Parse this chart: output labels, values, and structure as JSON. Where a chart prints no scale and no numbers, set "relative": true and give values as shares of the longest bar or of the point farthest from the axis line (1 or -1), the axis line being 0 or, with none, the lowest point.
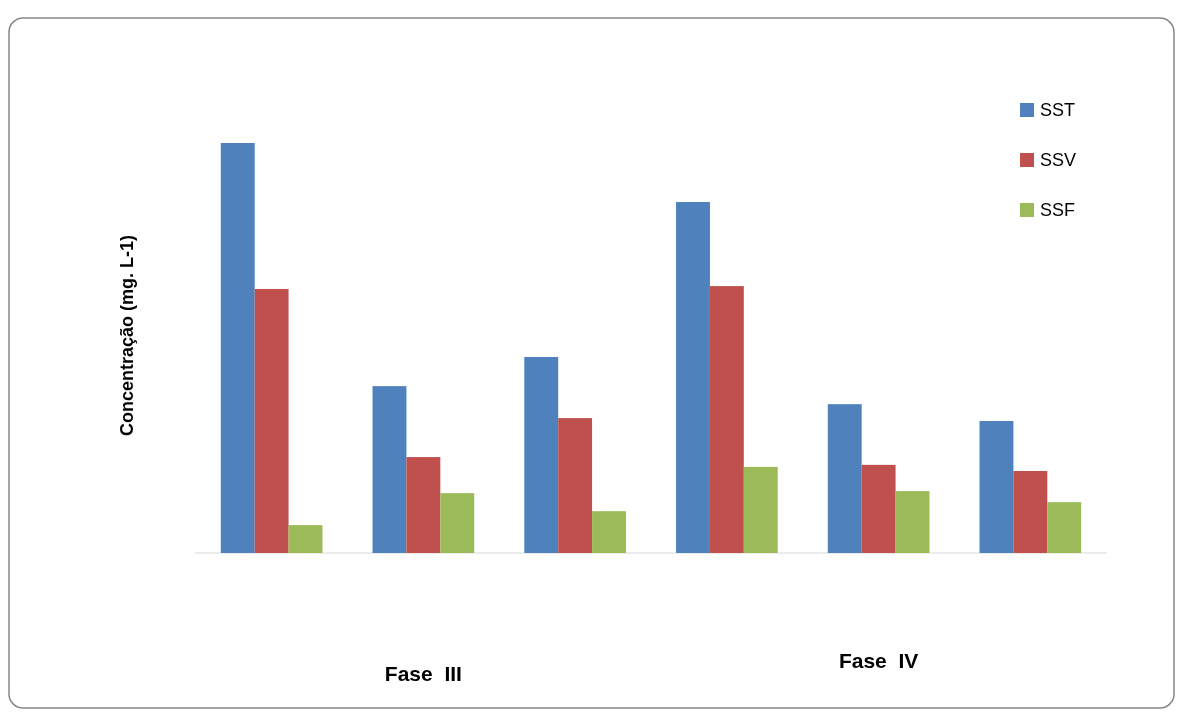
{
  "chart_data": {
    "type": "bar",
    "relative": true,
    "ylabel": "Concentração (mg. L-1)",
    "categories": [
      null,
      null,
      null,
      null,
      null,
      null
    ],
    "series": [
      {
        "name": "SST",
        "color": "#4f81bd",
        "values": [
          1,
          0.407,
          0.478,
          0.856,
          0.363,
          0.322
        ]
      },
      {
        "name": "SSV",
        "color": "#c0504d",
        "values": [
          0.644,
          0.234,
          0.329,
          0.651,
          0.215,
          0.2
        ]
      },
      {
        "name": "SSF",
        "color": "#9bbb59",
        "values": [
          0.068,
          0.146,
          0.102,
          0.21,
          0.151,
          0.124
        ]
      }
    ],
    "legend": "top right",
    "annotations": [
      "Fase  III",
      "Fase  IV"
    ]
  }
}
